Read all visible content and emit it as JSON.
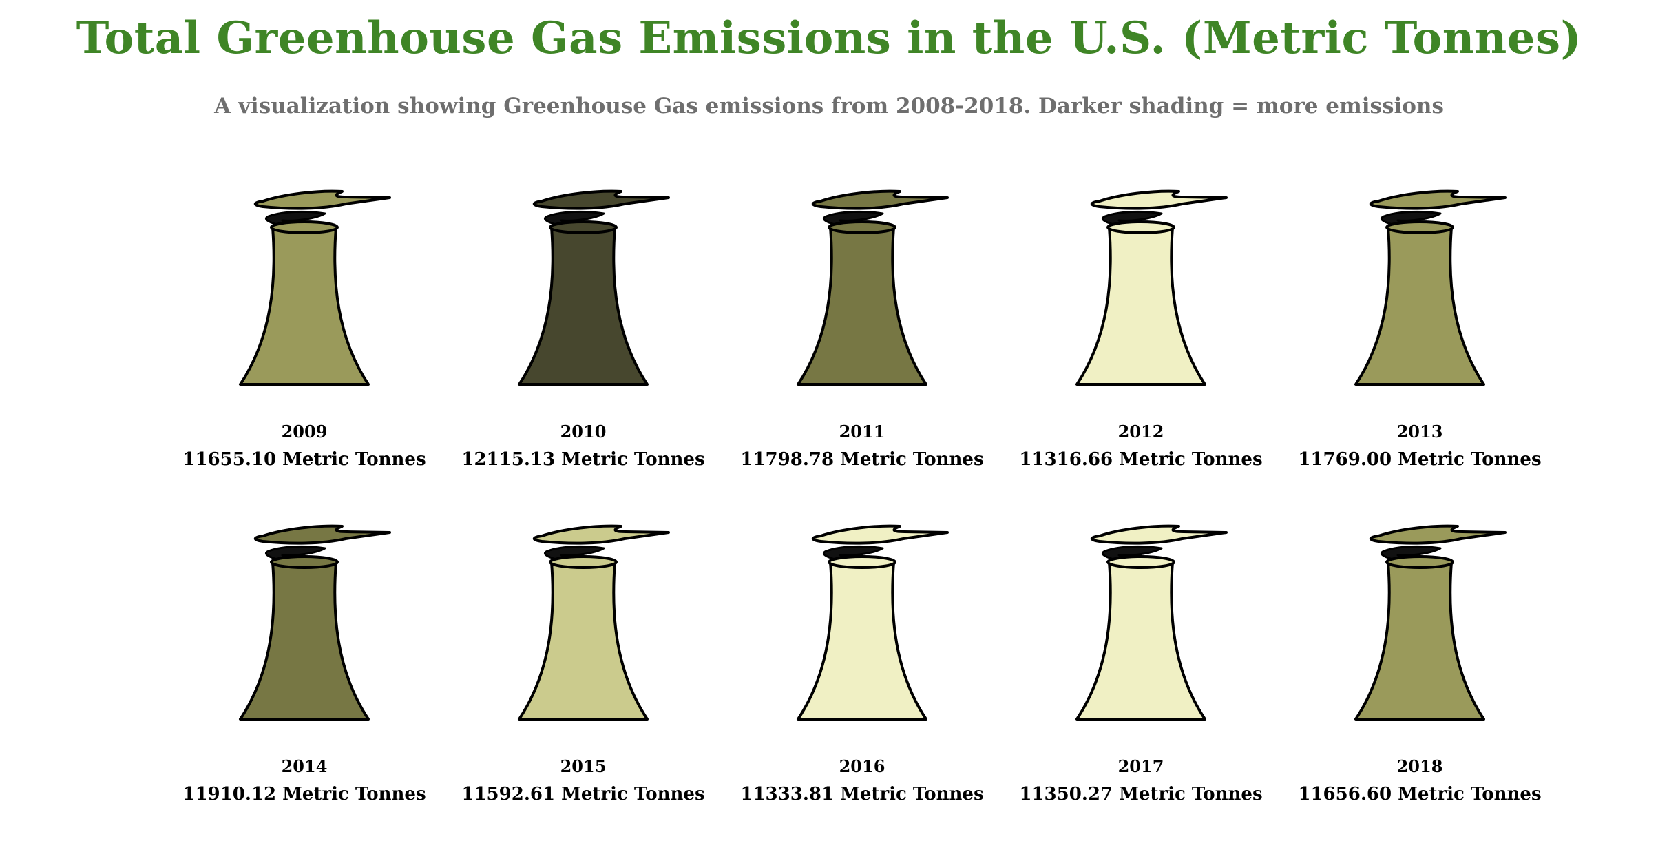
{
  "chart_data": {
    "type": "pictograph",
    "title": "Total Greenhouse Gas Emissions in the U.S. (Metric Tonnes)",
    "subtitle": "A visualization showing Greenhouse Gas emissions from 2008-2018. Darker shading = more emissions",
    "unit": "Metric Tonnes",
    "palette": [
      "#f0f0c4",
      "#cbcb8d",
      "#9a9a5b",
      "#777744",
      "#47472e"
    ],
    "points": [
      {
        "year": "2009",
        "value": 11655.1,
        "label": "11655.10 Metric Tonnes",
        "color": "#9a9a5b"
      },
      {
        "year": "2010",
        "value": 12115.13,
        "label": "12115.13 Metric Tonnes",
        "color": "#47472e"
      },
      {
        "year": "2011",
        "value": 11798.78,
        "label": "11798.78 Metric Tonnes",
        "color": "#777744"
      },
      {
        "year": "2012",
        "value": 11316.66,
        "label": "11316.66 Metric Tonnes",
        "color": "#f0f0c4"
      },
      {
        "year": "2013",
        "value": 11769.0,
        "label": "11769.00 Metric Tonnes",
        "color": "#9a9a5b"
      },
      {
        "year": "2014",
        "value": 11910.12,
        "label": "11910.12 Metric Tonnes",
        "color": "#777744"
      },
      {
        "year": "2015",
        "value": 11592.61,
        "label": "11592.61 Metric Tonnes",
        "color": "#cbcb8d"
      },
      {
        "year": "2016",
        "value": 11333.81,
        "label": "11333.81 Metric Tonnes",
        "color": "#f0f0c4"
      },
      {
        "year": "2017",
        "value": 11350.27,
        "label": "11350.27 Metric Tonnes",
        "color": "#f0f0c4"
      },
      {
        "year": "2018",
        "value": 11656.6,
        "label": "11656.60 Metric Tonnes",
        "color": "#9a9a5b"
      }
    ]
  }
}
